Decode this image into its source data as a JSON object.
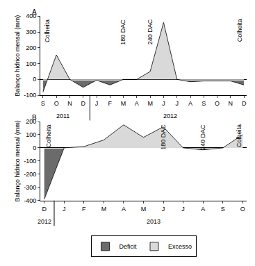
{
  "chart_data": {
    "type": "area",
    "y_label": "Balanço hídrico mensal (mm)",
    "legend": "bottom",
    "legend_entries": [
      {
        "name": "Deficit",
        "color": "#6b6b6b"
      },
      {
        "name": "Excesso",
        "color": "#d9d9d9"
      }
    ],
    "panels": [
      {
        "label": "A",
        "categories": [
          "S",
          "O",
          "N",
          "D",
          "J",
          "F",
          "M",
          "A",
          "M",
          "J",
          "J",
          "A",
          "S",
          "O",
          "N",
          "D"
        ],
        "values": [
          -80,
          155,
          0,
          -50,
          -5,
          -35,
          0,
          0,
          50,
          360,
          0,
          -15,
          -10,
          -10,
          -10,
          -35
        ],
        "years": [
          {
            "label": "2011",
            "start": 0,
            "end": 3
          },
          {
            "label": "2012",
            "start": 4,
            "end": 15
          }
        ],
        "ylim": [
          -100,
          400
        ],
        "yticks": [
          -100,
          0,
          100,
          200,
          300,
          400
        ],
        "annotations": [
          {
            "text": "Colheita",
            "at": 0
          },
          {
            "text": "180 DAC",
            "at": 6
          },
          {
            "text": "240 DAC",
            "at": 8
          },
          {
            "text": "Colheita",
            "at": 15
          }
        ]
      },
      {
        "label": "B",
        "categories": [
          "D",
          "J",
          "F",
          "M",
          "A",
          "M",
          "J",
          "J",
          "A",
          "S",
          "O"
        ],
        "values": [
          -390,
          0,
          10,
          60,
          175,
          80,
          160,
          0,
          -15,
          0,
          100
        ],
        "years": [
          {
            "label": "2012",
            "start": 0,
            "end": 0
          },
          {
            "label": "2013",
            "start": 1,
            "end": 10
          }
        ],
        "ylim": [
          -400,
          200
        ],
        "yticks": [
          -400,
          -300,
          -200,
          -100,
          0,
          100,
          200
        ],
        "annotations": [
          {
            "text": "Colheita",
            "at": 0
          },
          {
            "text": "180 DAC",
            "at": 6
          },
          {
            "text": "240 DAC",
            "at": 8
          },
          {
            "text": "Colheita",
            "at": 10
          }
        ]
      }
    ]
  }
}
